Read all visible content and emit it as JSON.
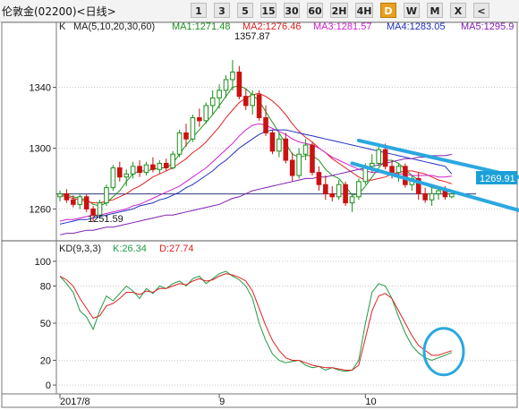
{
  "window": {
    "title": "伦敦金(02200)<日线>"
  },
  "periods": {
    "items": [
      "1",
      "3",
      "5",
      "15",
      "30",
      "60",
      "2H",
      "4H",
      "D",
      "W",
      "M",
      "X",
      "<"
    ],
    "active": "D"
  },
  "ma_header": {
    "k": "K",
    "params": "MA(5,10,20,30,60)",
    "ma1": "MA1:1271.48",
    "ma2": "MA2:1276.46",
    "ma3": "MA3:1281.57",
    "ma4": "MA4:1283.05",
    "ma5": "MA5:1295.9"
  },
  "kd_header": {
    "params": "KD(9,3,3)",
    "k": "K:26.34",
    "d": "D:27.74"
  },
  "price_tag": "1269.91",
  "high_label": "1357.87",
  "low_label": "1251.59",
  "colors": {
    "up": "#1a8f1a",
    "down": "#cc1111",
    "ma1": "#209020",
    "ma2": "#e02020",
    "ma3": "#d020d0",
    "ma4": "#2030c0",
    "ma5": "#8020b0",
    "k": "#229a44",
    "d": "#e02020",
    "annot": "#2aa8e0",
    "tag": "#1aa0d8"
  },
  "chart_data": [
    {
      "type": "candlestick",
      "title": "伦敦金(02200)<日线>",
      "ylim": [
        1242,
        1375
      ],
      "y_ticks": [
        1260,
        1300,
        1340
      ],
      "x_ticks": [
        {
          "i": 0,
          "label": "2017/8"
        },
        {
          "i": 24,
          "label": "9"
        },
        {
          "i": 46,
          "label": "10"
        }
      ],
      "reference_level": 1269.91,
      "ohlc": [
        [
          1268,
          1272,
          1265,
          1270
        ],
        [
          1270,
          1273,
          1264,
          1266
        ],
        [
          1266,
          1269,
          1261,
          1263
        ],
        [
          1263,
          1270,
          1260,
          1268
        ],
        [
          1268,
          1270,
          1258,
          1260
        ],
        [
          1260,
          1262,
          1251.59,
          1256
        ],
        [
          1256,
          1266,
          1254,
          1264
        ],
        [
          1264,
          1276,
          1262,
          1274
        ],
        [
          1274,
          1289,
          1272,
          1287
        ],
        [
          1287,
          1291,
          1278,
          1281
        ],
        [
          1281,
          1286,
          1275,
          1283
        ],
        [
          1283,
          1291,
          1280,
          1288
        ],
        [
          1288,
          1292,
          1281,
          1284
        ],
        [
          1284,
          1291,
          1282,
          1289
        ],
        [
          1289,
          1294,
          1284,
          1286
        ],
        [
          1286,
          1292,
          1283,
          1290
        ],
        [
          1290,
          1293,
          1285,
          1287
        ],
        [
          1287,
          1298,
          1286,
          1296
        ],
        [
          1296,
          1312,
          1294,
          1310
        ],
        [
          1310,
          1316,
          1301,
          1306
        ],
        [
          1306,
          1322,
          1304,
          1320
        ],
        [
          1320,
          1326,
          1314,
          1318
        ],
        [
          1318,
          1330,
          1316,
          1328
        ],
        [
          1328,
          1338,
          1322,
          1333
        ],
        [
          1333,
          1342,
          1326,
          1338
        ],
        [
          1338,
          1348,
          1333,
          1345
        ],
        [
          1345,
          1357.87,
          1338,
          1350
        ],
        [
          1350,
          1354,
          1332,
          1334
        ],
        [
          1334,
          1339,
          1325,
          1328
        ],
        [
          1328,
          1338,
          1322,
          1335
        ],
        [
          1335,
          1338,
          1318,
          1320
        ],
        [
          1320,
          1328,
          1308,
          1310
        ],
        [
          1310,
          1312,
          1296,
          1298
        ],
        [
          1298,
          1310,
          1294,
          1306
        ],
        [
          1306,
          1310,
          1290,
          1292
        ],
        [
          1292,
          1297,
          1278,
          1282
        ],
        [
          1282,
          1300,
          1280,
          1296
        ],
        [
          1296,
          1306,
          1292,
          1302
        ],
        [
          1302,
          1304,
          1282,
          1284
        ],
        [
          1284,
          1288,
          1272,
          1276
        ],
        [
          1276,
          1282,
          1266,
          1270
        ],
        [
          1270,
          1275,
          1265,
          1268
        ],
        [
          1268,
          1279,
          1266,
          1276
        ],
        [
          1276,
          1278,
          1262,
          1264
        ],
        [
          1264,
          1270,
          1258,
          1268
        ],
        [
          1268,
          1280,
          1266,
          1278
        ],
        [
          1278,
          1290,
          1276,
          1288
        ],
        [
          1288,
          1296,
          1284,
          1290
        ],
        [
          1290,
          1301,
          1288,
          1299
        ],
        [
          1299,
          1303,
          1286,
          1288
        ],
        [
          1288,
          1292,
          1280,
          1284
        ],
        [
          1284,
          1290,
          1278,
          1288
        ],
        [
          1288,
          1290,
          1274,
          1276
        ],
        [
          1276,
          1282,
          1272,
          1280
        ],
        [
          1280,
          1284,
          1266,
          1270
        ],
        [
          1270,
          1274,
          1264,
          1266
        ],
        [
          1266,
          1274,
          1262,
          1270
        ],
        [
          1270,
          1275,
          1266,
          1272
        ],
        [
          1272,
          1275,
          1266,
          1268
        ],
        [
          1268,
          1272,
          1267,
          1269.91
        ]
      ],
      "series": [
        {
          "name": "MA1",
          "values": [
            1270,
            1269,
            1268,
            1267,
            1266,
            1263,
            1262,
            1264,
            1268,
            1272,
            1278,
            1283,
            1285,
            1285,
            1286,
            1287,
            1287,
            1290,
            1296,
            1302,
            1307,
            1312,
            1317,
            1322,
            1328,
            1334,
            1340,
            1341,
            1339,
            1335,
            1331,
            1324,
            1317,
            1310,
            1303,
            1296,
            1294,
            1295,
            1295,
            1292,
            1286,
            1282,
            1280,
            1275,
            1269,
            1270,
            1275,
            1281,
            1287,
            1292,
            1292,
            1290,
            1286,
            1282,
            1279,
            1276,
            1274,
            1273,
            1272,
            1271.48
          ]
        },
        {
          "name": "MA2",
          "values": [
            1269,
            1268,
            1267,
            1266,
            1265,
            1264,
            1264,
            1265,
            1266,
            1268,
            1270,
            1273,
            1275,
            1278,
            1281,
            1283,
            1285,
            1287,
            1290,
            1293,
            1297,
            1300,
            1304,
            1309,
            1314,
            1320,
            1325,
            1330,
            1333,
            1335,
            1336,
            1334,
            1331,
            1327,
            1322,
            1316,
            1311,
            1307,
            1304,
            1300,
            1297,
            1293,
            1290,
            1287,
            1284,
            1281,
            1279,
            1279,
            1280,
            1281,
            1283,
            1284,
            1285,
            1285,
            1284,
            1283,
            1281,
            1279,
            1278,
            1276.46
          ]
        },
        {
          "name": "MA3",
          "values": [
            1252,
            1253,
            1253,
            1254,
            1255,
            1256,
            1256,
            1257,
            1258,
            1259,
            1260,
            1262,
            1263,
            1265,
            1267,
            1269,
            1271,
            1273,
            1275,
            1278,
            1281,
            1284,
            1287,
            1291,
            1295,
            1299,
            1303,
            1308,
            1312,
            1315,
            1316,
            1315,
            1313,
            1311,
            1309,
            1306,
            1304,
            1303,
            1302,
            1300,
            1297,
            1294,
            1292,
            1290,
            1288,
            1286,
            1285,
            1284,
            1284,
            1284,
            1283,
            1283,
            1283,
            1282,
            1282,
            1282,
            1282,
            1281,
            1281,
            1281.57
          ]
        },
        {
          "name": "MA4",
          "values": [
            1250,
            1251,
            1252,
            1253,
            1253,
            1254,
            1255,
            1256,
            1257,
            1258,
            1259,
            1260,
            1262,
            1263,
            1264,
            1266,
            1267,
            1269,
            1271,
            1274,
            1276,
            1279,
            1282,
            1285,
            1289,
            1292,
            1296,
            1300,
            1303,
            1306,
            1309,
            1311,
            1312,
            1312,
            1312,
            1311,
            1310,
            1309,
            1308,
            1307,
            1306,
            1305,
            1304,
            1303,
            1302,
            1301,
            1300,
            1299,
            1298,
            1297,
            1296,
            1295,
            1294,
            1293,
            1292,
            1291,
            1290,
            1289,
            1288,
            1283.05
          ]
        },
        {
          "name": "MA5",
          "values": [
            1243,
            1244,
            1244,
            1245,
            1246,
            1246,
            1247,
            1248,
            1248,
            1249,
            1250,
            1251,
            1252,
            1253,
            1254,
            1255,
            1256,
            1256,
            1257,
            1258,
            1259,
            1260,
            1261,
            1262,
            1263,
            1265,
            1267,
            1268,
            1270,
            1272,
            1273,
            1274,
            1275,
            1276,
            1277,
            1278,
            1279,
            1280,
            1280,
            1281,
            1281,
            1282,
            1283,
            1284,
            1285,
            1286,
            1287,
            1288,
            1289,
            1290,
            1291,
            1292,
            1293,
            1293,
            1294,
            1294,
            1295,
            1295,
            1295,
            1295.9
          ]
        }
      ],
      "annotations": [
        {
          "type": "down-channel",
          "upper": [
            [
              45,
              1305
            ],
            [
              70,
              1280
            ]
          ],
          "lower": [
            [
              44,
              1290
            ],
            [
              70,
              1258
            ]
          ]
        }
      ]
    },
    {
      "type": "line",
      "title": "KD(9,3,3)",
      "ylim": [
        -5,
        105
      ],
      "y_ticks": [
        0,
        20,
        50,
        80,
        100
      ],
      "series": [
        {
          "name": "K",
          "values": [
            88,
            82,
            75,
            60,
            55,
            45,
            60,
            72,
            68,
            74,
            80,
            76,
            70,
            78,
            74,
            80,
            78,
            82,
            84,
            80,
            86,
            88,
            82,
            86,
            90,
            92,
            88,
            85,
            80,
            70,
            50,
            36,
            25,
            20,
            18,
            19,
            20,
            16,
            14,
            15,
            12,
            14,
            12,
            11,
            12,
            20,
            50,
            75,
            82,
            80,
            70,
            55,
            42,
            32,
            26,
            22,
            20,
            22,
            24,
            26.34
          ]
        },
        {
          "name": "D",
          "values": [
            88,
            85,
            80,
            70,
            62,
            54,
            56,
            64,
            66,
            70,
            75,
            75,
            73,
            76,
            75,
            78,
            78,
            80,
            82,
            81,
            84,
            86,
            84,
            85,
            88,
            90,
            89,
            87,
            84,
            76,
            62,
            48,
            36,
            28,
            22,
            20,
            20,
            18,
            16,
            15,
            14,
            14,
            13,
            12,
            12,
            16,
            38,
            60,
            72,
            74,
            70,
            60,
            50,
            40,
            32,
            28,
            24,
            24,
            26,
            27.74
          ]
        }
      ],
      "annotations": [
        {
          "type": "circle",
          "x": 57,
          "y": 27
        }
      ]
    }
  ]
}
